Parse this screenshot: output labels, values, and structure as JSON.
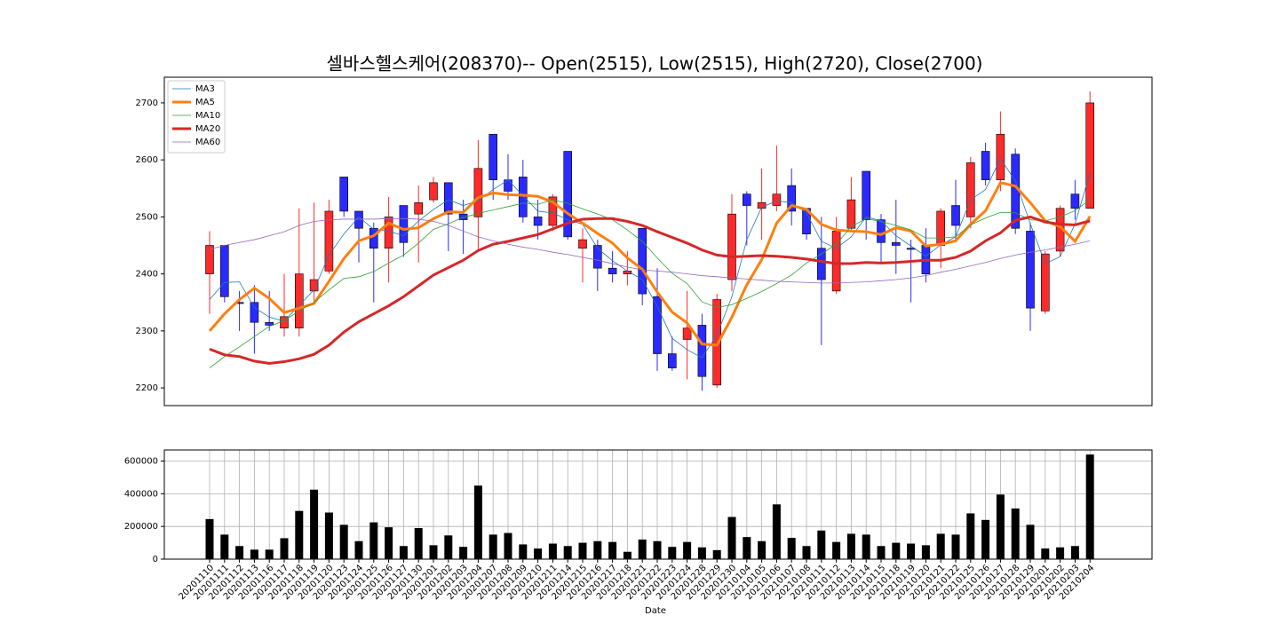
{
  "chart_data": [
    {
      "type": "candlestick",
      "title": "셀바스헬스케어(208370)-- Open(2515), Low(2515), High(2720), Close(2700)",
      "open": [
        2400,
        2450,
        2350,
        2350,
        2315,
        2305,
        2305,
        2370,
        2405,
        2570,
        2510,
        2480,
        2445,
        2520,
        2505,
        2530,
        2560,
        2505,
        2500,
        2645,
        2565,
        2570,
        2500,
        2485,
        2615,
        2445,
        2450,
        2410,
        2400,
        2480,
        2360,
        2260,
        2285,
        2310,
        2205,
        2390,
        2540,
        2515,
        2520,
        2555,
        2515,
        2445,
        2370,
        2480,
        2580,
        2495,
        2455,
        2445,
        2450,
        2450,
        2520,
        2500,
        2615,
        2565,
        2610,
        2475,
        2335,
        2440,
        2540,
        2515
      ],
      "high": [
        2475,
        2450,
        2370,
        2380,
        2370,
        2400,
        2515,
        2525,
        2530,
        2570,
        2510,
        2490,
        2535,
        2520,
        2555,
        2570,
        2560,
        2530,
        2635,
        2645,
        2610,
        2600,
        2530,
        2540,
        2615,
        2480,
        2460,
        2440,
        2440,
        2480,
        2410,
        2290,
        2370,
        2330,
        2365,
        2540,
        2545,
        2585,
        2625,
        2585,
        2515,
        2500,
        2500,
        2570,
        2580,
        2505,
        2530,
        2460,
        2480,
        2515,
        2565,
        2605,
        2630,
        2685,
        2620,
        2490,
        2440,
        2520,
        2565,
        2720
      ],
      "low": [
        2330,
        2350,
        2300,
        2260,
        2300,
        2290,
        2290,
        2350,
        2400,
        2500,
        2420,
        2350,
        2385,
        2430,
        2420,
        2525,
        2440,
        2435,
        2440,
        2530,
        2530,
        2490,
        2460,
        2475,
        2460,
        2385,
        2370,
        2385,
        2380,
        2345,
        2230,
        2230,
        2215,
        2195,
        2200,
        2370,
        2450,
        2460,
        2510,
        2485,
        2460,
        2275,
        2365,
        2475,
        2460,
        2420,
        2400,
        2350,
        2385,
        2410,
        2460,
        2480,
        2555,
        2545,
        2470,
        2300,
        2330,
        2430,
        2495,
        2515
      ],
      "close": [
        2450,
        2360,
        2348,
        2315,
        2310,
        2325,
        2400,
        2390,
        2510,
        2510,
        2480,
        2445,
        2500,
        2455,
        2525,
        2560,
        2505,
        2495,
        2585,
        2565,
        2545,
        2500,
        2485,
        2535,
        2465,
        2460,
        2410,
        2400,
        2405,
        2365,
        2260,
        2235,
        2305,
        2220,
        2355,
        2505,
        2520,
        2525,
        2540,
        2510,
        2470,
        2390,
        2475,
        2530,
        2495,
        2455,
        2450,
        2443,
        2400,
        2510,
        2485,
        2595,
        2565,
        2645,
        2480,
        2340,
        2435,
        2515,
        2515,
        2700
      ],
      "up_color": "#ff2a2a",
      "down_color": "#2a2aff",
      "series": [
        {
          "name": "MA3",
          "color": "#1f77b4",
          "width": 0.8,
          "values": [
            2355,
            2385,
            2386,
            2341,
            2324,
            2317,
            2345,
            2372,
            2433,
            2470,
            2500,
            2478,
            2475,
            2467,
            2493,
            2513,
            2530,
            2520,
            2528,
            2548,
            2565,
            2537,
            2510,
            2507,
            2495,
            2487,
            2445,
            2423,
            2405,
            2390,
            2343,
            2287,
            2267,
            2253,
            2293,
            2360,
            2460,
            2517,
            2528,
            2525,
            2507,
            2457,
            2445,
            2465,
            2500,
            2493,
            2467,
            2449,
            2431,
            2451,
            2465,
            2530,
            2548,
            2602,
            2563,
            2488,
            2418,
            2430,
            2488,
            2577
          ]
        },
        {
          "name": "MA5",
          "color": "#ff7f0e",
          "width": 3,
          "values": [
            2300,
            2330,
            2355,
            2375,
            2357,
            2332,
            2340,
            2348,
            2387,
            2427,
            2458,
            2467,
            2489,
            2478,
            2481,
            2497,
            2509,
            2508,
            2534,
            2542,
            2539,
            2538,
            2536,
            2526,
            2506,
            2489,
            2471,
            2454,
            2428,
            2408,
            2368,
            2333,
            2314,
            2277,
            2275,
            2324,
            2381,
            2425,
            2489,
            2520,
            2513,
            2487,
            2477,
            2475,
            2474,
            2469,
            2481,
            2475,
            2449,
            2452,
            2458,
            2487,
            2511,
            2560,
            2554,
            2525,
            2493,
            2483,
            2457,
            2501
          ]
        },
        {
          "name": "MA10",
          "color": "#2ca02c",
          "width": 0.8,
          "values": [
            2235,
            2255,
            2272,
            2290,
            2308,
            2318,
            2335,
            2350,
            2372,
            2392,
            2395,
            2404,
            2419,
            2433,
            2454,
            2478,
            2488,
            2499,
            2506,
            2512,
            2518,
            2524,
            2522,
            2530,
            2524,
            2514,
            2505,
            2495,
            2477,
            2457,
            2428,
            2401,
            2383,
            2351,
            2341,
            2346,
            2357,
            2369,
            2383,
            2398,
            2419,
            2435,
            2452,
            2483,
            2497,
            2492,
            2485,
            2477,
            2463,
            2463,
            2465,
            2486,
            2498,
            2508,
            2507,
            2495,
            2493,
            2500,
            2511,
            2530
          ]
        },
        {
          "name": "MA20",
          "color": "#d62728",
          "width": 3,
          "values": [
            2268,
            2258,
            2255,
            2247,
            2243,
            2246,
            2251,
            2259,
            2275,
            2298,
            2316,
            2330,
            2344,
            2360,
            2379,
            2398,
            2411,
            2424,
            2441,
            2452,
            2457,
            2463,
            2469,
            2479,
            2489,
            2496,
            2497,
            2497,
            2492,
            2485,
            2474,
            2464,
            2454,
            2442,
            2433,
            2430,
            2431,
            2432,
            2431,
            2429,
            2426,
            2422,
            2418,
            2418,
            2420,
            2419,
            2420,
            2422,
            2424,
            2424,
            2429,
            2440,
            2458,
            2472,
            2494,
            2500,
            2491,
            2487,
            2486,
            2493
          ]
        },
        {
          "name": "MA60",
          "color": "#9467bd",
          "width": 0.8,
          "values": [
            2443,
            2450,
            2455,
            2460,
            2467,
            2474,
            2485,
            2492,
            2495,
            2496,
            2496,
            2496,
            2497,
            2497,
            2496,
            2492,
            2485,
            2475,
            2465,
            2458,
            2452,
            2447,
            2443,
            2438,
            2434,
            2429,
            2424,
            2418,
            2412,
            2407,
            2405,
            2403,
            2400,
            2397,
            2395,
            2393,
            2391,
            2389,
            2387,
            2386,
            2385,
            2384,
            2384,
            2385,
            2386,
            2388,
            2390,
            2393,
            2397,
            2403,
            2408,
            2414,
            2420,
            2427,
            2433,
            2438,
            2442,
            2447,
            2452,
            2458
          ]
        }
      ],
      "legend": "upper left",
      "ylim": [
        2169,
        2745
      ],
      "yticks": [
        2200,
        2300,
        2400,
        2500,
        2600,
        2700
      ]
    },
    {
      "type": "bar",
      "x_label": "Date",
      "x": [
        "20201110",
        "20201111",
        "20201112",
        "20201113",
        "20201116",
        "20201117",
        "20201118",
        "20201119",
        "20201120",
        "20201123",
        "20201124",
        "20201125",
        "20201126",
        "20201127",
        "20201130",
        "20201201",
        "20201202",
        "20201203",
        "20201204",
        "20201207",
        "20201208",
        "20201209",
        "20201210",
        "20201211",
        "20201214",
        "20201215",
        "20201216",
        "20201217",
        "20201218",
        "20201221",
        "20201222",
        "20201223",
        "20201224",
        "20201228",
        "20201229",
        "20201230",
        "20210104",
        "20210105",
        "20210106",
        "20210107",
        "20210108",
        "20210111",
        "20210112",
        "20210113",
        "20210114",
        "20210115",
        "20210118",
        "20210119",
        "20210120",
        "20210121",
        "20210122",
        "20210125",
        "20210126",
        "20210127",
        "20210128",
        "20210129",
        "20210201",
        "20210202",
        "20210203",
        "20210204"
      ],
      "values": [
        245000,
        150000,
        80000,
        58000,
        58000,
        128000,
        295000,
        425000,
        285000,
        210000,
        110000,
        225000,
        195000,
        80000,
        190000,
        85000,
        145000,
        75000,
        450000,
        150000,
        160000,
        90000,
        65000,
        95000,
        80000,
        100000,
        110000,
        105000,
        45000,
        120000,
        110000,
        75000,
        105000,
        72000,
        55000,
        258000,
        135000,
        110000,
        335000,
        130000,
        80000,
        175000,
        105000,
        155000,
        150000,
        80000,
        100000,
        95000,
        85000,
        155000,
        150000,
        280000,
        240000,
        395000,
        310000,
        210000,
        65000,
        72000,
        80000,
        640000
      ],
      "color": "#000000",
      "ylim": [
        0,
        668000
      ],
      "yticks": [
        0,
        200000,
        400000,
        600000
      ],
      "grid": true
    }
  ]
}
